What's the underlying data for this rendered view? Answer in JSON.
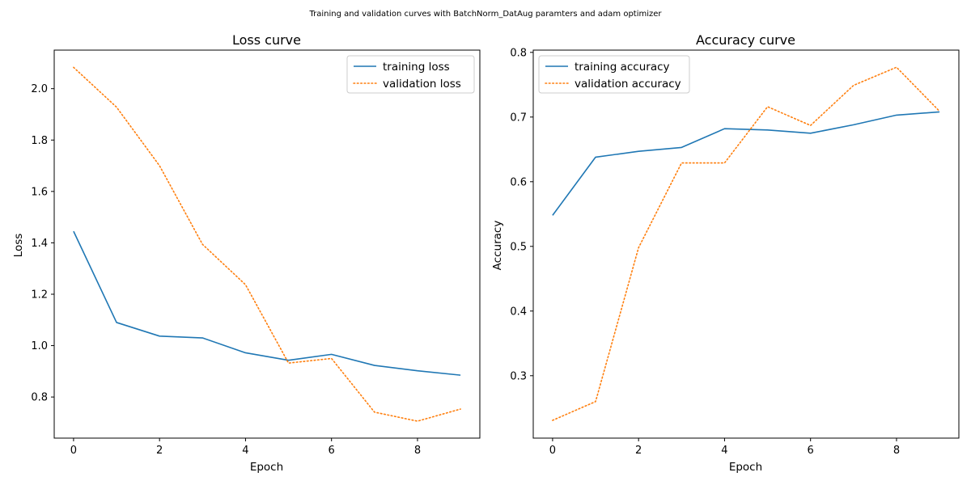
{
  "suptitle": "Training and validation curves with BatchNorm_DatAug paramters and adam optimizer",
  "colors": {
    "training": "#1f77b4",
    "validation": "#ff7f0e"
  },
  "chart_data": [
    {
      "type": "line",
      "title": "Loss curve",
      "xlabel": "Epoch",
      "ylabel": "Loss",
      "xlim": [
        -0.45,
        9.45
      ],
      "ylim": [
        0.64,
        2.15
      ],
      "xticks": [
        0,
        2,
        4,
        6,
        8
      ],
      "yticks": [
        0.8,
        1.0,
        1.2,
        1.4,
        1.6,
        1.8,
        2.0
      ],
      "grid": false,
      "legend_position": "upper right",
      "x": [
        0,
        1,
        2,
        3,
        4,
        5,
        6,
        7,
        8,
        9
      ],
      "series": [
        {
          "name": "training loss",
          "style": "solid",
          "color": "#1f77b4",
          "values": [
            1.445,
            1.09,
            1.037,
            1.03,
            0.972,
            0.943,
            0.966,
            0.923,
            0.902,
            0.885
          ]
        },
        {
          "name": "validation loss",
          "style": "dotted",
          "color": "#ff7f0e",
          "values": [
            2.083,
            1.928,
            1.7,
            1.394,
            1.237,
            0.932,
            0.95,
            0.741,
            0.706,
            0.753
          ]
        }
      ]
    },
    {
      "type": "line",
      "title": "Accuracy curve",
      "xlabel": "Epoch",
      "ylabel": "Accuracy",
      "xlim": [
        -0.45,
        9.45
      ],
      "ylim": [
        0.2035,
        0.8035
      ],
      "xticks": [
        0,
        2,
        4,
        6,
        8
      ],
      "yticks": [
        0.3,
        0.4,
        0.5,
        0.6,
        0.7,
        0.8
      ],
      "grid": false,
      "legend_position": "upper left",
      "x": [
        0,
        1,
        2,
        3,
        4,
        5,
        6,
        7,
        8,
        9
      ],
      "series": [
        {
          "name": "training accuracy",
          "style": "solid",
          "color": "#1f77b4",
          "values": [
            0.548,
            0.638,
            0.647,
            0.653,
            0.682,
            0.68,
            0.675,
            0.688,
            0.703,
            0.708
          ]
        },
        {
          "name": "validation accuracy",
          "style": "dotted",
          "color": "#ff7f0e",
          "values": [
            0.231,
            0.26,
            0.498,
            0.629,
            0.629,
            0.716,
            0.687,
            0.749,
            0.777,
            0.709
          ]
        }
      ]
    }
  ]
}
